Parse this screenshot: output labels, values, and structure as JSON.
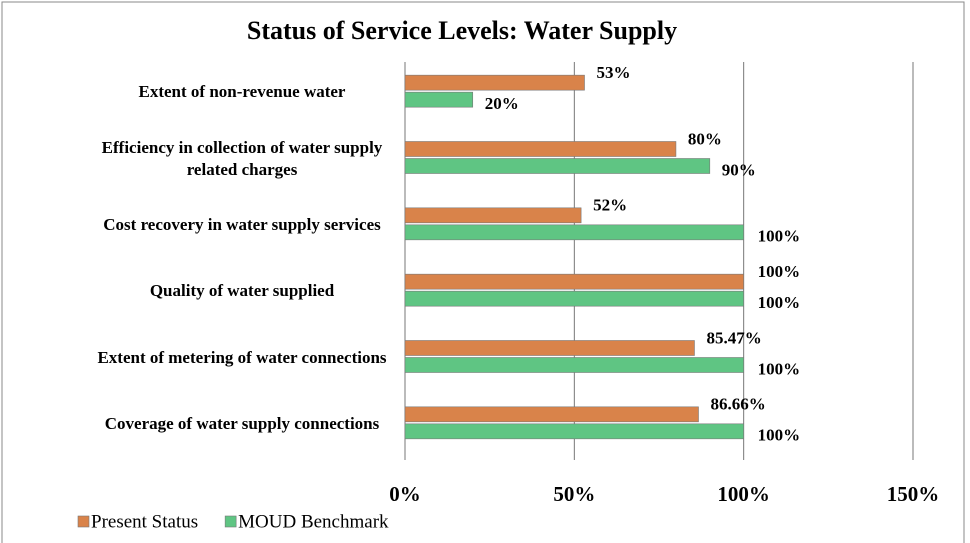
{
  "chart_data": {
    "type": "bar",
    "orientation": "horizontal",
    "title": "Status of Service Levels: Water Supply",
    "categories": [
      "Extent of non-revenue water",
      "Efficiency in collection of water supply related charges",
      "Cost recovery in water supply services",
      "Quality of water supplied",
      "Extent of metering of water connections",
      "Coverage of water supply connections"
    ],
    "series": [
      {
        "name": "Present Status",
        "color": "#d9834a",
        "values": [
          53,
          80,
          52,
          100,
          85.47,
          86.66
        ],
        "value_labels": [
          "53%",
          "80%",
          "52%",
          "100%",
          "85.47%",
          "86.66%"
        ]
      },
      {
        "name": "MOUD Benchmark",
        "color": "#5fc583",
        "values": [
          20,
          90,
          100,
          100,
          100,
          100
        ],
        "value_labels": [
          "20%",
          "90%",
          "100%",
          "100%",
          "100%",
          "100%"
        ]
      }
    ],
    "xlim": [
      0,
      150
    ],
    "xticks": [
      {
        "value": 0,
        "label": "0%"
      },
      {
        "value": 50,
        "label": "50%"
      },
      {
        "value": 100,
        "label": "100%"
      },
      {
        "value": 150,
        "label": "150%"
      }
    ],
    "grid": true,
    "legend": "bottom-left"
  }
}
